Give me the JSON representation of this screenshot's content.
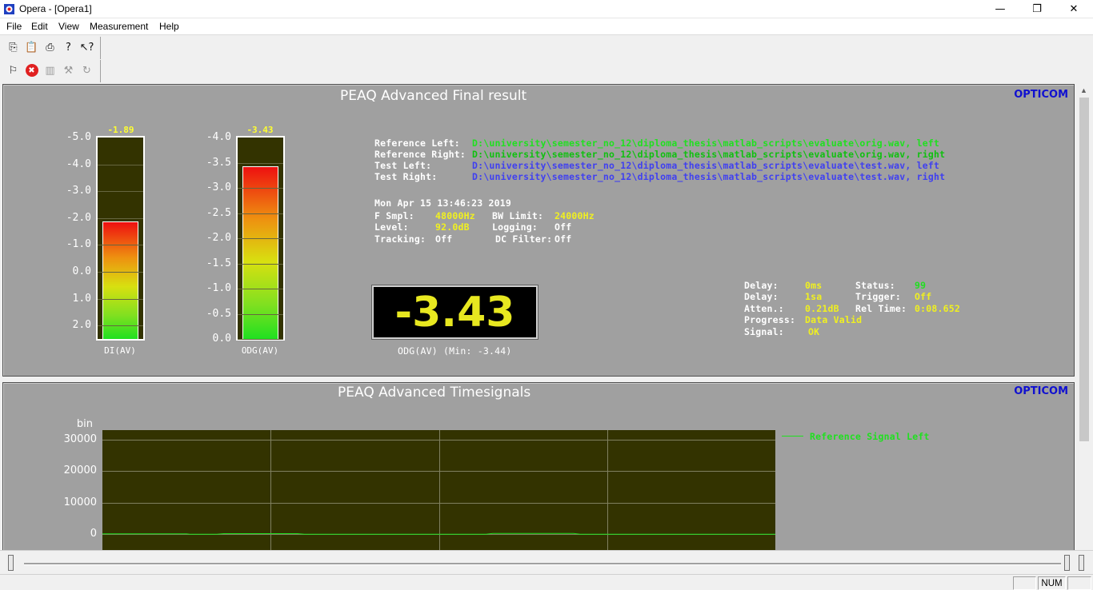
{
  "window": {
    "title": "Opera - [Opera1]",
    "minimize_glyph": "—",
    "restore_glyph": "❐",
    "close_glyph": "✕"
  },
  "menu": [
    "File",
    "Edit",
    "View",
    "Measurement",
    "Help"
  ],
  "toolbar1": [
    {
      "icon": "copy-icon",
      "glyph": "⎘",
      "enabled": true
    },
    {
      "icon": "paste-icon",
      "glyph": "📋",
      "enabled": false
    },
    {
      "icon": "print-icon",
      "glyph": "⎙",
      "enabled": true
    },
    {
      "icon": "help-icon",
      "glyph": "?",
      "enabled": true
    },
    {
      "icon": "context-help-icon",
      "glyph": "↖?",
      "enabled": true
    }
  ],
  "toolbar2": [
    {
      "icon": "start-measurement-icon",
      "glyph": "⚐",
      "enabled": true
    },
    {
      "icon": "stop-icon",
      "glyph": "✖",
      "enabled": true
    },
    {
      "icon": "pause-icon",
      "glyph": "▥",
      "enabled": false
    },
    {
      "icon": "tools-icon",
      "glyph": "⚒",
      "enabled": false
    },
    {
      "icon": "reset-icon",
      "glyph": "↻",
      "enabled": false
    }
  ],
  "final_result": {
    "title": "PEAQ Advanced Final result",
    "brand": "OPTICOM",
    "di_meter": {
      "caption": "DI(AV)",
      "value_label": "-1.89",
      "scale": [
        "-5.0",
        "-4.0",
        "-3.0",
        "-2.0",
        "-1.0",
        "0.0",
        "1.0",
        "2.0"
      ],
      "min": -5.0,
      "max": 2.5,
      "value": -1.89
    },
    "odg_meter": {
      "caption": "ODG(AV)",
      "value_label": "-3.43",
      "scale": [
        "-4.0",
        "-3.5",
        "-3.0",
        "-2.5",
        "-2.0",
        "-1.5",
        "-1.0",
        "-0.5",
        "0.0"
      ],
      "min": -4.0,
      "max": 0.0,
      "value": -3.43
    },
    "files": [
      {
        "label": "Reference Left:",
        "path": "D:\\university\\semester_no_12\\diploma_thesis\\matlab_scripts\\evaluate\\orig.wav, left",
        "color": "#20e020"
      },
      {
        "label": "Reference Right:",
        "path": "D:\\university\\semester_no_12\\diploma_thesis\\matlab_scripts\\evaluate\\orig.wav, right",
        "color": "#10c010"
      },
      {
        "label": "Test Left:",
        "path": "D:\\university\\semester_no_12\\diploma_thesis\\matlab_scripts\\evaluate\\test.wav, left",
        "color": "#4040f0"
      },
      {
        "label": "Test Right:",
        "path": "D:\\university\\semester_no_12\\diploma_thesis\\matlab_scripts\\evaluate\\test.wav, right",
        "color": "#4040f0"
      }
    ],
    "timestamp": "Mon Apr 15 13:46:23 2019",
    "params": {
      "f_smpl_label": "F Smpl:",
      "f_smpl": "48000Hz",
      "bw_limit_label": "BW Limit:",
      "bw_limit": "24000Hz",
      "level_label": "Level:",
      "level": "92.0dB",
      "logging_label": "Logging:",
      "logging": "Off",
      "tracking_label": "Tracking:",
      "tracking": "Off",
      "dc_filter_label": "DC Filter:",
      "dc_filter": "Off"
    },
    "big_value": "-3.43",
    "big_caption": "ODG(AV) (Min: -3.44)",
    "status": {
      "delay_ms_label": "Delay:",
      "delay_ms": "0ms",
      "status_label": "Status:",
      "status": "99",
      "delay_sa_label": "Delay:",
      "delay_sa": "1sa",
      "trigger_label": "Trigger:",
      "trigger": "Off",
      "atten_label": "Atten.:",
      "atten": "0.21dB",
      "rel_time_label": "Rel Time:",
      "rel_time": "0:08.652",
      "progress_label": "Progress:",
      "progress": "Data Valid",
      "signal_label": "Signal:",
      "signal": "OK"
    }
  },
  "timesignals": {
    "title": "PEAQ Advanced Timesignals",
    "brand": "OPTICOM",
    "legend_color": "#20e020"
  },
  "chart_data": {
    "type": "line",
    "title": "PEAQ Advanced Timesignals",
    "ylabel": "bin",
    "yticks": [
      "30000",
      "20000",
      "10000",
      "0"
    ],
    "ylim": [
      -5000,
      33000
    ],
    "grid": true,
    "legend": "right",
    "series": [
      {
        "name": "Reference Signal Left",
        "color": "#20e020",
        "x": [
          0,
          0.125,
          0.13,
          0.17,
          0.18,
          0.29,
          0.3,
          0.57,
          0.58,
          0.7,
          0.71,
          1.0
        ],
        "values": [
          150,
          150,
          0,
          0,
          200,
          200,
          0,
          0,
          250,
          250,
          0,
          0
        ]
      }
    ]
  },
  "statusbar": {
    "num": "NUM"
  }
}
